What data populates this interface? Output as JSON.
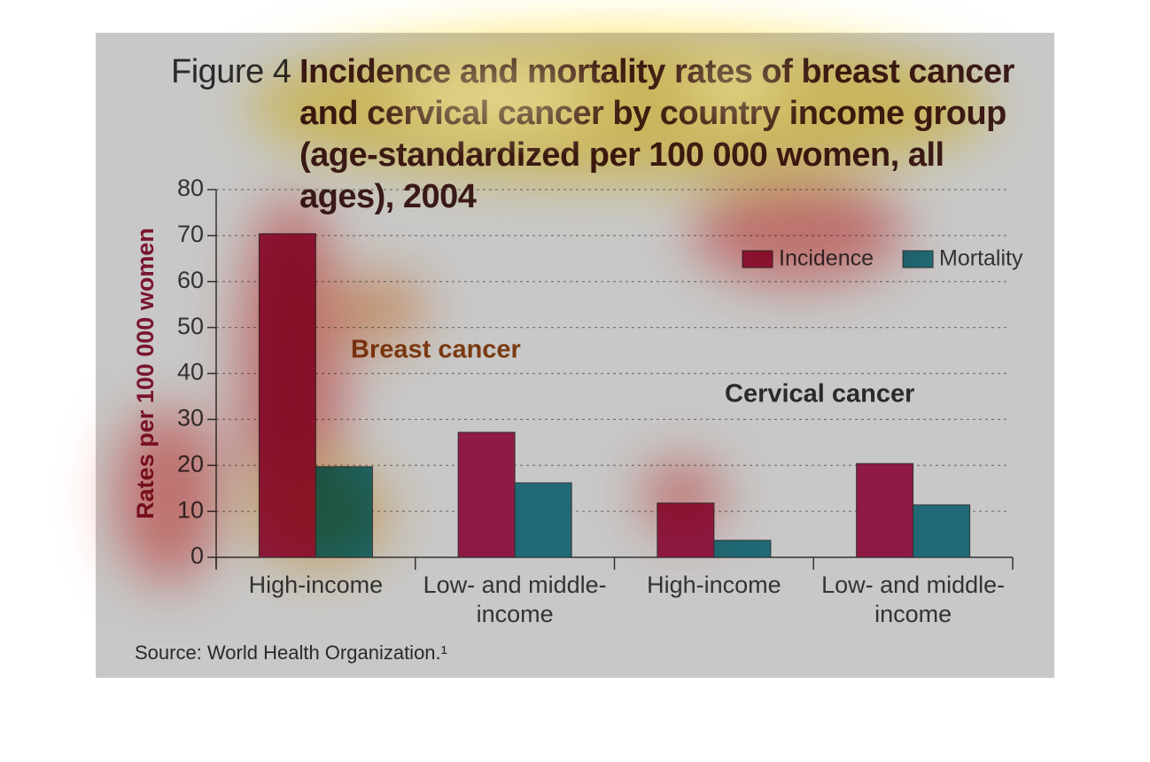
{
  "chart_data": {
    "type": "bar",
    "figure_label": "Figure 4",
    "title": "Incidence and mortality rates of breast cancer and cervical cancer by country income group (age-standardized per 100 000 women, all ages), 2004",
    "ylabel": "Rates per 100 000 women",
    "categories": [
      "High-income",
      "Low- and middle-income",
      "High-income",
      "Low- and middle-income"
    ],
    "series": [
      {
        "name": "Incidence",
        "color": "#8e1a45",
        "values": [
          70.4,
          27.2,
          11.8,
          20.4
        ]
      },
      {
        "name": "Mortality",
        "color": "#1f6a76",
        "values": [
          19.7,
          16.2,
          3.7,
          11.4
        ]
      }
    ],
    "annotations": [
      "Breast cancer",
      "Cervical cancer"
    ],
    "source": "Source: World Health Organization.¹",
    "ylim": [
      0,
      80
    ],
    "yticks": [
      0,
      10,
      20,
      30,
      40,
      50,
      60,
      70,
      80
    ],
    "grid": true,
    "legend": "upper right"
  }
}
